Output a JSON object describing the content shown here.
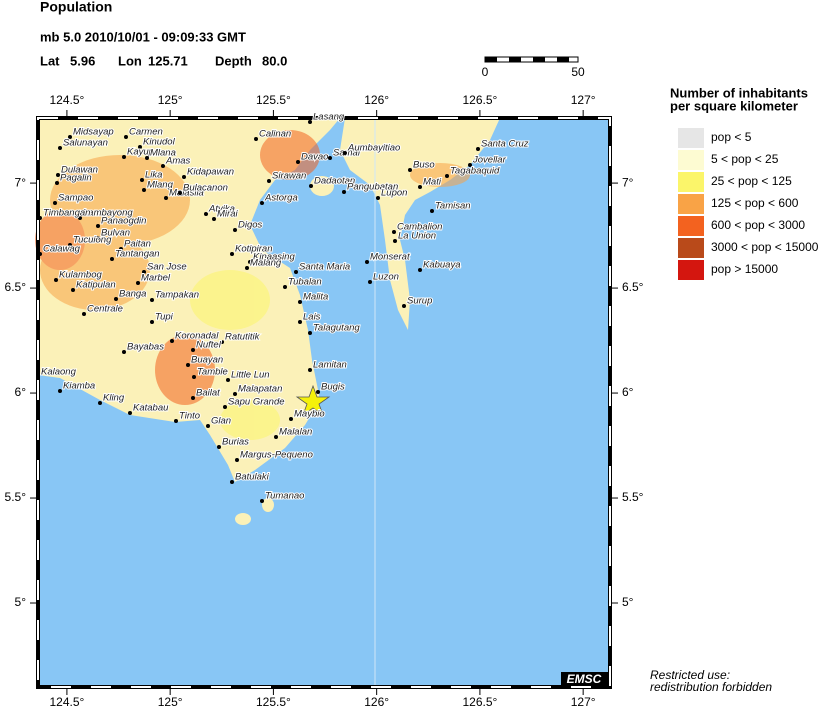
{
  "header": {
    "title": "Population",
    "event": "mb 5.0  2010/10/01 - 09:09:33 GMT",
    "lat_label": "Lat",
    "lat": "5.96",
    "lon_label": "Lon",
    "lon": "125.71",
    "depth_label": "Depth",
    "depth": "80.0"
  },
  "scale_bar": {
    "labels": [
      "0",
      "50"
    ]
  },
  "map": {
    "lon_range": [
      124.36,
      127.13
    ],
    "lat_range": [
      4.6,
      7.31
    ],
    "lon_ticks": [
      {
        "value": 124.5,
        "label": "124.5°"
      },
      {
        "value": 125,
        "label": "125°"
      },
      {
        "value": 125.5,
        "label": "125.5°"
      },
      {
        "value": 126,
        "label": "126°"
      },
      {
        "value": 126.5,
        "label": "126.5°"
      },
      {
        "value": 127,
        "label": "127°"
      }
    ],
    "lat_ticks": [
      {
        "value": 7,
        "label": "7°"
      },
      {
        "value": 6.5,
        "label": "6.5°"
      },
      {
        "value": 6,
        "label": "6°"
      },
      {
        "value": 5.5,
        "label": "5.5°"
      },
      {
        "value": 5,
        "label": "5°"
      }
    ],
    "places": [
      "Midsayap",
      "Carmen",
      "Salunayan",
      "Kinudol",
      "Kayupo",
      "Mlana",
      "Amas",
      "Calinan",
      "Lasang",
      "Davao",
      "Samal",
      "Aumbayitiao",
      "Kidapawan",
      "Dulawan",
      "Pagalin",
      "Lika",
      "Mlang",
      "Malasila",
      "Bulacanon",
      "Sirawan",
      "Dadaotan",
      "Pangubatan",
      "Astorga",
      "Lupon",
      "Santa Cruz",
      "Jovellar",
      "Buso",
      "Tagabaquid",
      "Mati",
      "Tamisan",
      "Sampao",
      "Lambayong",
      "Panaogdin",
      "Timbangan",
      "Atyika",
      "Mirai",
      "Bulvan",
      "Digos",
      "Cambalion",
      "Tucuiong",
      "La Union",
      "Paitan",
      "Calawag",
      "Tantangan",
      "Kotipiran",
      "Kinaasing",
      "Malang",
      "Santa Maria",
      "Monserat",
      "Kabuaya",
      "San Jose",
      "Kulambog",
      "Tubalan",
      "Luzon",
      "Marbel",
      "Katipulan",
      "Banga",
      "Tampakan",
      "Malita",
      "Surup",
      "Centrale",
      "Tupi",
      "Lais",
      "Talagutang",
      "Koronadal",
      "Ratutitik",
      "Nuftel",
      "Bayabas",
      "Lamitan",
      "Buayan",
      "Tamble",
      "Little Lun",
      "Kalaong",
      "Bugis",
      "Kiamba",
      "Kling",
      "Malapatan",
      "Bailat",
      "Sapu Grande",
      "Katabau",
      "Maybio",
      "Tinto",
      "Glan",
      "Malalan",
      "Burias",
      "Margus-Pequeno",
      "Batulaki",
      "Tumanao"
    ]
  },
  "legend": {
    "title": [
      "Number of inhabitants",
      "per square kilometer"
    ],
    "items": [
      {
        "label": "pop < 5",
        "color": "#e6e6e6"
      },
      {
        "label": "5 < pop < 25",
        "color": "#fdfbd2"
      },
      {
        "label": "25 < pop < 125",
        "color": "#fbf56a"
      },
      {
        "label": "125 < pop < 600",
        "color": "#f9a346"
      },
      {
        "label": "600 < pop < 3000",
        "color": "#f3621f"
      },
      {
        "label": "3000 < pop < 15000",
        "color": "#b94a1a"
      },
      {
        "label": "pop > 15000",
        "color": "#d4160f"
      }
    ]
  },
  "footer": {
    "logo": "EMSC",
    "note": [
      "Restricted use:",
      "redistribution forbidden"
    ]
  }
}
